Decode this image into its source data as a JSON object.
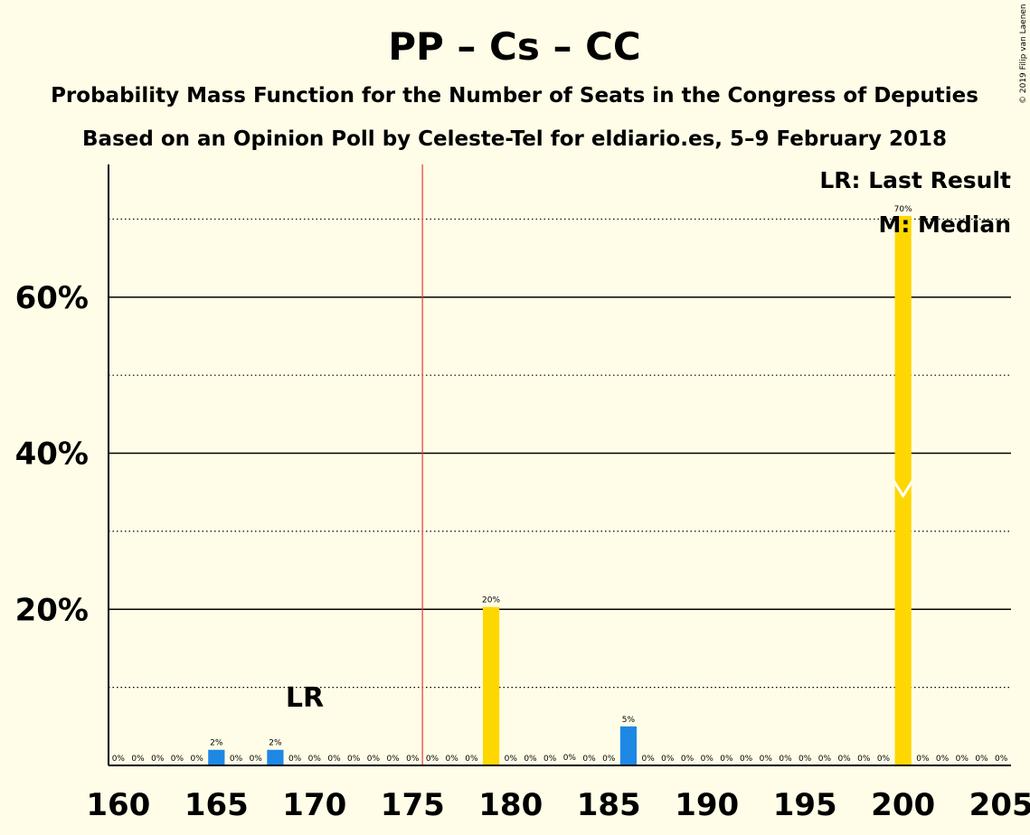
{
  "copyright": "© 2019 Filip van Laenen",
  "chart_data": {
    "type": "bar",
    "title": "PP – Cs – CC",
    "subtitle1": "Probability Mass Function for the Number of Seats in the Congress of Deputies",
    "subtitle2": "Based on an Opinion Poll by Celeste-Tel for eldiario.es, 5–9 February 2018",
    "xlim": [
      160,
      205
    ],
    "ylim": [
      0,
      77
    ],
    "x_ticks": [
      160,
      165,
      170,
      175,
      180,
      185,
      190,
      195,
      200,
      205
    ],
    "y_ticks_major": [
      20,
      40,
      60
    ],
    "y_tick_labels": [
      "20%",
      "40%",
      "60%"
    ],
    "y_gridlines_dotted": [
      10,
      30,
      50,
      70
    ],
    "majority_line_x": 176,
    "last_result_x": 169,
    "last_result_label": "LR",
    "median_x": 200,
    "legend": [
      "LR: Last Result",
      "M: Median"
    ],
    "legend_position": "top-right",
    "colors": {
      "background": "#FFFDE7",
      "highlight": "#FFD700",
      "normal": "#1E88E5",
      "majority_line": "#E53935",
      "median_marker": "#FFFFFF"
    },
    "bars": [
      {
        "x": 160,
        "value": 0,
        "label": "0%",
        "highlight": false
      },
      {
        "x": 161,
        "value": 0,
        "label": "0%",
        "highlight": false
      },
      {
        "x": 162,
        "value": 0,
        "label": "0%",
        "highlight": false
      },
      {
        "x": 163,
        "value": 0,
        "label": "0%",
        "highlight": false
      },
      {
        "x": 164,
        "value": 0,
        "label": "0%",
        "highlight": false
      },
      {
        "x": 165,
        "value": 2,
        "label": "2%",
        "highlight": false
      },
      {
        "x": 166,
        "value": 0,
        "label": "0%",
        "highlight": false
      },
      {
        "x": 167,
        "value": 0,
        "label": "0%",
        "highlight": false
      },
      {
        "x": 168,
        "value": 2,
        "label": "2%",
        "highlight": false
      },
      {
        "x": 169,
        "value": 0,
        "label": "0%",
        "highlight": false
      },
      {
        "x": 170,
        "value": 0,
        "label": "0%",
        "highlight": false
      },
      {
        "x": 171,
        "value": 0,
        "label": "0%",
        "highlight": false
      },
      {
        "x": 172,
        "value": 0,
        "label": "0%",
        "highlight": false
      },
      {
        "x": 173,
        "value": 0,
        "label": "0%",
        "highlight": false
      },
      {
        "x": 174,
        "value": 0,
        "label": "0%",
        "highlight": false
      },
      {
        "x": 175,
        "value": 0,
        "label": "0%",
        "highlight": false
      },
      {
        "x": 176,
        "value": 0,
        "label": "0%",
        "highlight": false
      },
      {
        "x": 177,
        "value": 0,
        "label": "0%",
        "highlight": false
      },
      {
        "x": 178,
        "value": 0,
        "label": "0%",
        "highlight": false
      },
      {
        "x": 179,
        "value": 20.3,
        "label": "20%",
        "highlight": true
      },
      {
        "x": 180,
        "value": 0,
        "label": "0%",
        "highlight": false
      },
      {
        "x": 181,
        "value": 0,
        "label": "0%",
        "highlight": false
      },
      {
        "x": 182,
        "value": 0,
        "label": "0%",
        "highlight": false
      },
      {
        "x": 183,
        "value": 0.1,
        "label": "0%",
        "highlight": false
      },
      {
        "x": 184,
        "value": 0,
        "label": "0%",
        "highlight": false
      },
      {
        "x": 185,
        "value": 0,
        "label": "0%",
        "highlight": false
      },
      {
        "x": 186,
        "value": 5,
        "label": "5%",
        "highlight": false
      },
      {
        "x": 187,
        "value": 0,
        "label": "0%",
        "highlight": false
      },
      {
        "x": 188,
        "value": 0,
        "label": "0%",
        "highlight": false
      },
      {
        "x": 189,
        "value": 0,
        "label": "0%",
        "highlight": false
      },
      {
        "x": 190,
        "value": 0,
        "label": "0%",
        "highlight": false
      },
      {
        "x": 191,
        "value": 0,
        "label": "0%",
        "highlight": false
      },
      {
        "x": 192,
        "value": 0,
        "label": "0%",
        "highlight": false
      },
      {
        "x": 193,
        "value": 0,
        "label": "0%",
        "highlight": false
      },
      {
        "x": 194,
        "value": 0,
        "label": "0%",
        "highlight": false
      },
      {
        "x": 195,
        "value": 0,
        "label": "0%",
        "highlight": false
      },
      {
        "x": 196,
        "value": 0,
        "label": "0%",
        "highlight": false
      },
      {
        "x": 197,
        "value": 0,
        "label": "0%",
        "highlight": false
      },
      {
        "x": 198,
        "value": 0,
        "label": "0%",
        "highlight": false
      },
      {
        "x": 199,
        "value": 0,
        "label": "0%",
        "highlight": false
      },
      {
        "x": 200,
        "value": 70.4,
        "label": "70%",
        "highlight": true
      },
      {
        "x": 201,
        "value": 0,
        "label": "0%",
        "highlight": false
      },
      {
        "x": 202,
        "value": 0,
        "label": "0%",
        "highlight": false
      },
      {
        "x": 203,
        "value": 0,
        "label": "0%",
        "highlight": false
      },
      {
        "x": 204,
        "value": 0,
        "label": "0%",
        "highlight": false
      },
      {
        "x": 205,
        "value": 0,
        "label": "0%",
        "highlight": false
      }
    ]
  }
}
